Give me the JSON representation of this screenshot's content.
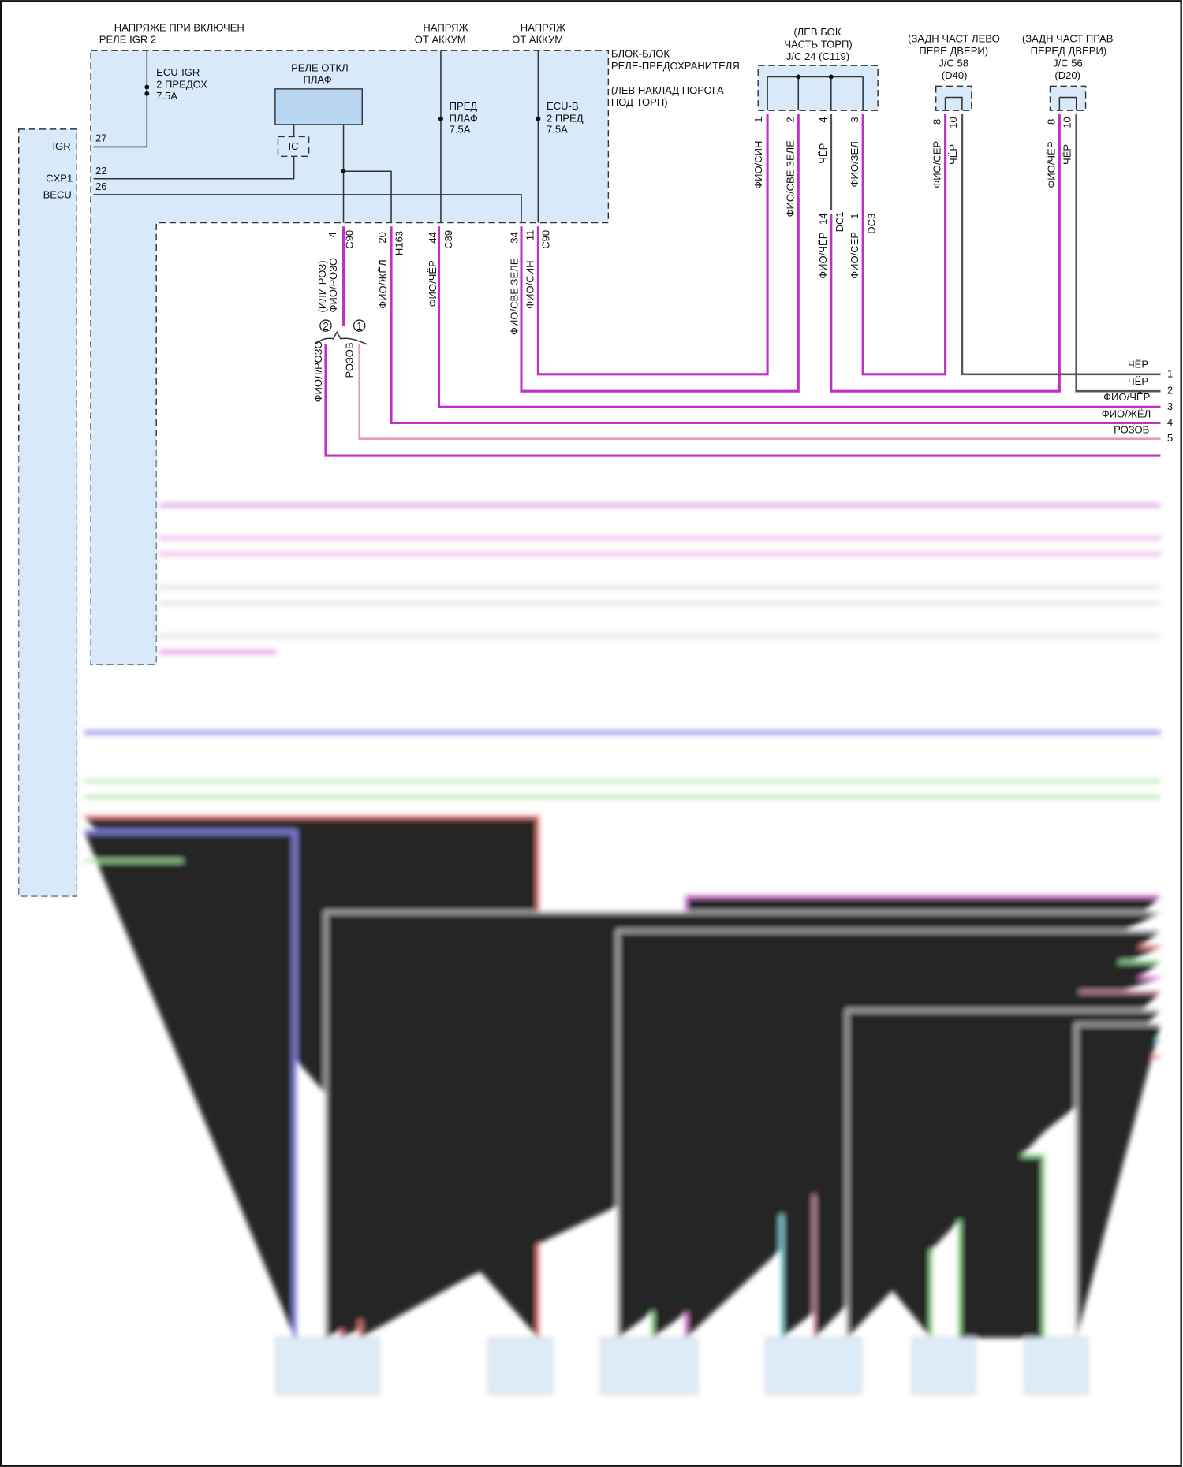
{
  "colors": {
    "magenta": "#c030c8",
    "pink": "#e59ab0",
    "gray": "#555555",
    "block_fill": "#d8e9f9",
    "relay_fill": "#b9d6f2"
  },
  "top_labels": {
    "igr_supply": [
      "НАПРЯЖЕ ПРИ ВКЛЮЧЕН",
      "РЕЛЕ IGR 2"
    ],
    "batt_1": [
      "НАПРЯЖ",
      "ОТ АККУМ"
    ],
    "batt_2": [
      "НАПРЯЖ",
      "ОТ АККУМ"
    ]
  },
  "relay_block": {
    "title": [
      "БЛОК-БЛОК",
      "РЕЛЕ-ПРЕДОХРАНИТЕЛЯ"
    ],
    "location": [
      "(ЛЕВ НАКЛАД ПОРОГА",
      "ПОД ТОРП)"
    ],
    "fuse_ecu_igr": [
      "ECU-IGR",
      "2 ПРЕДОХ",
      "7.5A"
    ],
    "relay": [
      "РЕЛЕ ОТКЛ",
      "ПЛАФ"
    ],
    "ic": "IC",
    "fuse_dome": [
      "ПРЕД",
      "ПЛАФ",
      "7.5A"
    ],
    "fuse_ecu_b": [
      "ECU-B",
      "2 ПРЕД",
      "7.5A"
    ]
  },
  "ecu_pins": [
    {
      "name": "IGR",
      "pin": "27"
    },
    {
      "name": "CXP1",
      "pin": "22"
    },
    {
      "name": "BECU",
      "pin": "26"
    }
  ],
  "block_connectors": [
    {
      "pin": "4",
      "conn": "C90",
      "wire": "(ИЛИ РОЗ)",
      "wire2": "ФИО/РОЗО"
    },
    {
      "pin": "20",
      "conn": "H163",
      "wire": "ФИО/ЖЁЛ"
    },
    {
      "pin": "44",
      "conn": "C89",
      "wire": "ФИО/ЧЁР"
    },
    {
      "pin": "34",
      "conn": "",
      "wire": "ФИО/СВЕ ЗЕЛЕ"
    },
    {
      "pin": "11",
      "conn": "C90",
      "wire": "ФИО/СИН"
    }
  ],
  "variants": {
    "v2": "2",
    "v1": "1",
    "v2_wire": "ФИОЛ/РОЗО",
    "v1_wire": "РОЗОВ"
  },
  "jc24": {
    "label": [
      "(ЛЕВ БОК",
      "ЧАСТЬ ТОРП)",
      "J/C 24 (C119)"
    ],
    "pins": [
      {
        "pin": "1",
        "wire": "ФИО/СИН"
      },
      {
        "pin": "2",
        "wire": "ФИО/СВЕ ЗЕЛЕ"
      },
      {
        "pin": "4",
        "wire": "ЧЁР"
      },
      {
        "pin": "3",
        "wire": "ФИО/ЗЕЛ"
      }
    ]
  },
  "dc": [
    {
      "pin": "14",
      "conn": "DC1",
      "wire": "ФИО/ЧЁР"
    },
    {
      "pin": "1",
      "conn": "DC3",
      "wire": "ФИО/СЕР"
    }
  ],
  "jc58": {
    "label": [
      "(ЗАДН ЧАСТ ЛЕВО",
      "ПЕРЕ ДВЕРИ)",
      "J/C 58",
      "(D40)"
    ],
    "pins": [
      {
        "pin": "8",
        "wire": "ФИО/СЕР"
      },
      {
        "pin": "10",
        "wire": "ЧЁР"
      }
    ]
  },
  "jc56": {
    "label": [
      "(ЗАДН ЧАСТ ПРАВ",
      "ПЕРЕД ДВЕРИ)",
      "J/C 56",
      "(D20)"
    ],
    "pins": [
      {
        "pin": "8",
        "wire": "ФИО/ЧЁР"
      },
      {
        "pin": "10",
        "wire": "ЧЁР"
      }
    ]
  },
  "outputs": [
    {
      "num": "1",
      "wire": "ЧЁР"
    },
    {
      "num": "2",
      "wire": "ЧЁР"
    },
    {
      "num": "3",
      "wire": "ФИО/ЧЁР"
    },
    {
      "num": "4",
      "wire": "ФИО/ЖЁЛ"
    },
    {
      "num": "5",
      "wire": "РОЗОВ"
    }
  ]
}
